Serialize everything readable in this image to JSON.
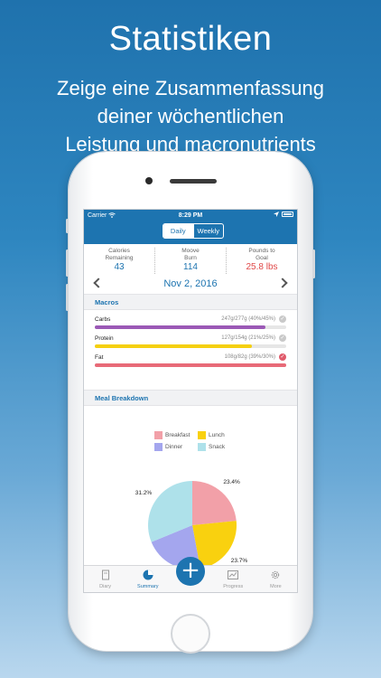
{
  "promo": {
    "headline": "Statistiken",
    "lines": [
      "Zeige eine Zusammenfassung",
      "deiner wöchentlichen",
      "Leistung und macronutrients"
    ]
  },
  "status_bar": {
    "carrier": "Carrier",
    "time": "8:29 PM"
  },
  "segmented": {
    "daily": "Daily",
    "weekly": "Weekly",
    "selected": "Daily"
  },
  "stats": [
    {
      "label_line1": "Calories",
      "label_line2": "Remaining",
      "value": "43",
      "color": "#1d74b0"
    },
    {
      "label_line1": "Moove",
      "label_line2": "Burn",
      "value": "114",
      "color": "#1d74b0"
    },
    {
      "label_line1": "Pounds to",
      "label_line2": "Goal",
      "value": "25.8 lbs",
      "color": "#e04848"
    }
  ],
  "date": "Nov 2, 2016",
  "macros": {
    "title": "Macros",
    "items": [
      {
        "name": "Carbs",
        "detail": "247g/277g (40%/45%)",
        "progress": 0.89,
        "color": "#9b59b6",
        "status": "ok"
      },
      {
        "name": "Protein",
        "detail": "127g/154g (21%/25%)",
        "progress": 0.82,
        "color": "#f5d00f",
        "status": "ok"
      },
      {
        "name": "Fat",
        "detail": "108g/82g (39%/30%)",
        "progress": 1.0,
        "color": "#e86a78",
        "status": "over"
      }
    ]
  },
  "meal_breakdown": {
    "title": "Meal Breakdown",
    "legend": [
      {
        "name": "Breakfast",
        "color": "#f2a0a8"
      },
      {
        "name": "Lunch",
        "color": "#f9d10f"
      },
      {
        "name": "Dinner",
        "color": "#a4a6ee"
      },
      {
        "name": "Snack",
        "color": "#aee1ea"
      }
    ]
  },
  "chart_data": {
    "type": "pie",
    "labels": [
      "Breakfast",
      "Lunch",
      "Dinner",
      "Snack"
    ],
    "values": [
      23.4,
      23.7,
      21.7,
      31.2
    ],
    "visible_value_labels": [
      "23.4%",
      "23.7%",
      "31.2%"
    ],
    "colors": [
      "#f2a0a8",
      "#f9d10f",
      "#a4a6ee",
      "#aee1ea"
    ],
    "legend": "top"
  },
  "tabs": [
    {
      "label": "Diary",
      "icon": "diary-icon"
    },
    {
      "label": "Summary",
      "icon": "summary-icon",
      "active": true
    },
    {
      "label": "",
      "icon": "plus-icon"
    },
    {
      "label": "Progress",
      "icon": "progress-icon"
    },
    {
      "label": "More",
      "icon": "gear-icon"
    }
  ]
}
